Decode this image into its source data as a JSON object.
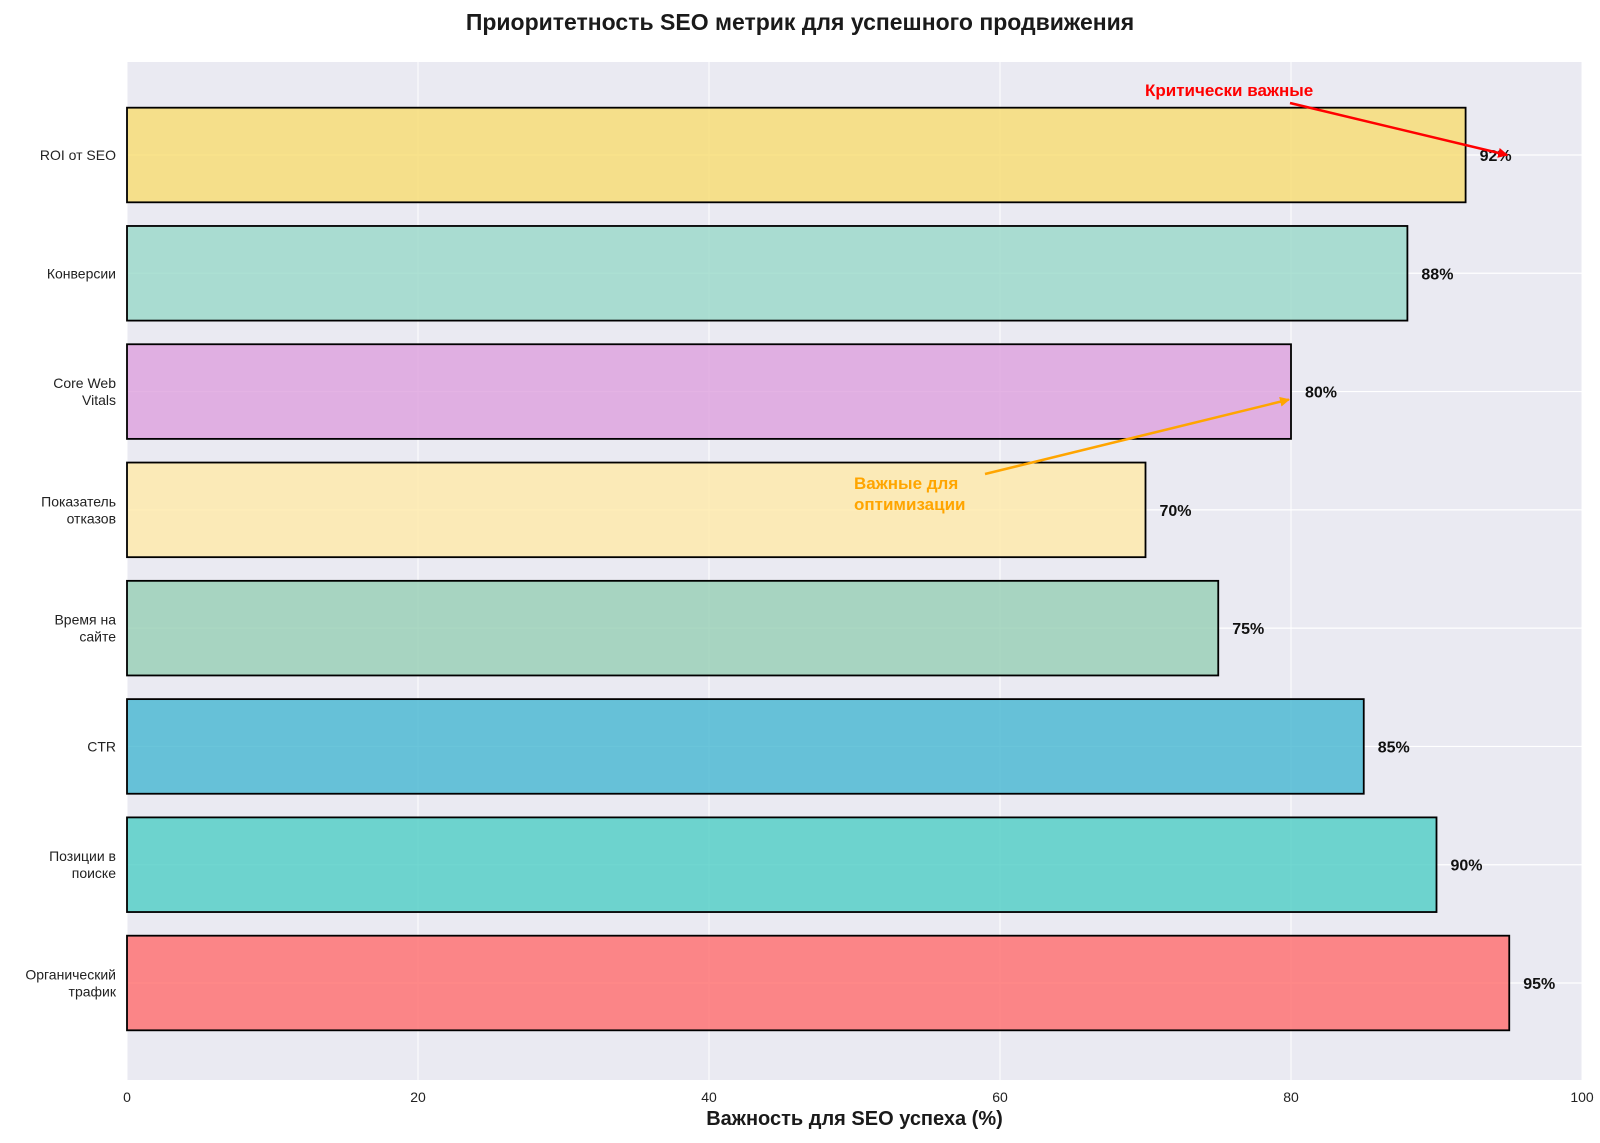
{
  "chart_data": {
    "type": "bar",
    "orientation": "horizontal",
    "title": "Приоритетность SEO метрик для успешного продвижения",
    "xlabel": "Важность для SEO успеха (%)",
    "ylabel": "",
    "xlim": [
      0,
      100
    ],
    "xticks": [
      "0",
      "20",
      "40",
      "60",
      "80",
      "100"
    ],
    "grid": true,
    "categories": [
      [
        "Органический",
        "трафик"
      ],
      [
        "Позиции в",
        "поиске"
      ],
      [
        "CTR"
      ],
      [
        "Время на",
        "сайте"
      ],
      [
        "Показатель",
        "отказов"
      ],
      [
        "Core Web",
        "Vitals"
      ],
      [
        "Конверсии"
      ],
      [
        "ROI от SEO"
      ]
    ],
    "values": [
      95,
      90,
      85,
      75,
      70,
      80,
      88,
      92
    ],
    "value_labels": [
      "95%",
      "90%",
      "85%",
      "75%",
      "70%",
      "80%",
      "88%",
      "92%"
    ],
    "colors": [
      "#FF6B6B",
      "#4ECDC4",
      "#45B7D1",
      "#96CEB4",
      "#FFEAA7",
      "#DDA0DD",
      "#98D8C8",
      "#F7DC6F"
    ],
    "annotations": [
      {
        "text": [
          "Критически важные"
        ],
        "color": "#FF0000",
        "target_category_index": 7,
        "target_value": 95
      },
      {
        "text": [
          "Важные для",
          "оптимизации"
        ],
        "color": "#FFA500",
        "target_category_index": 5,
        "target_value": 80
      }
    ],
    "style": {
      "background": "#EAEAF2",
      "grid_color": "#FFFFFF",
      "bar_edge": "#000000"
    }
  }
}
